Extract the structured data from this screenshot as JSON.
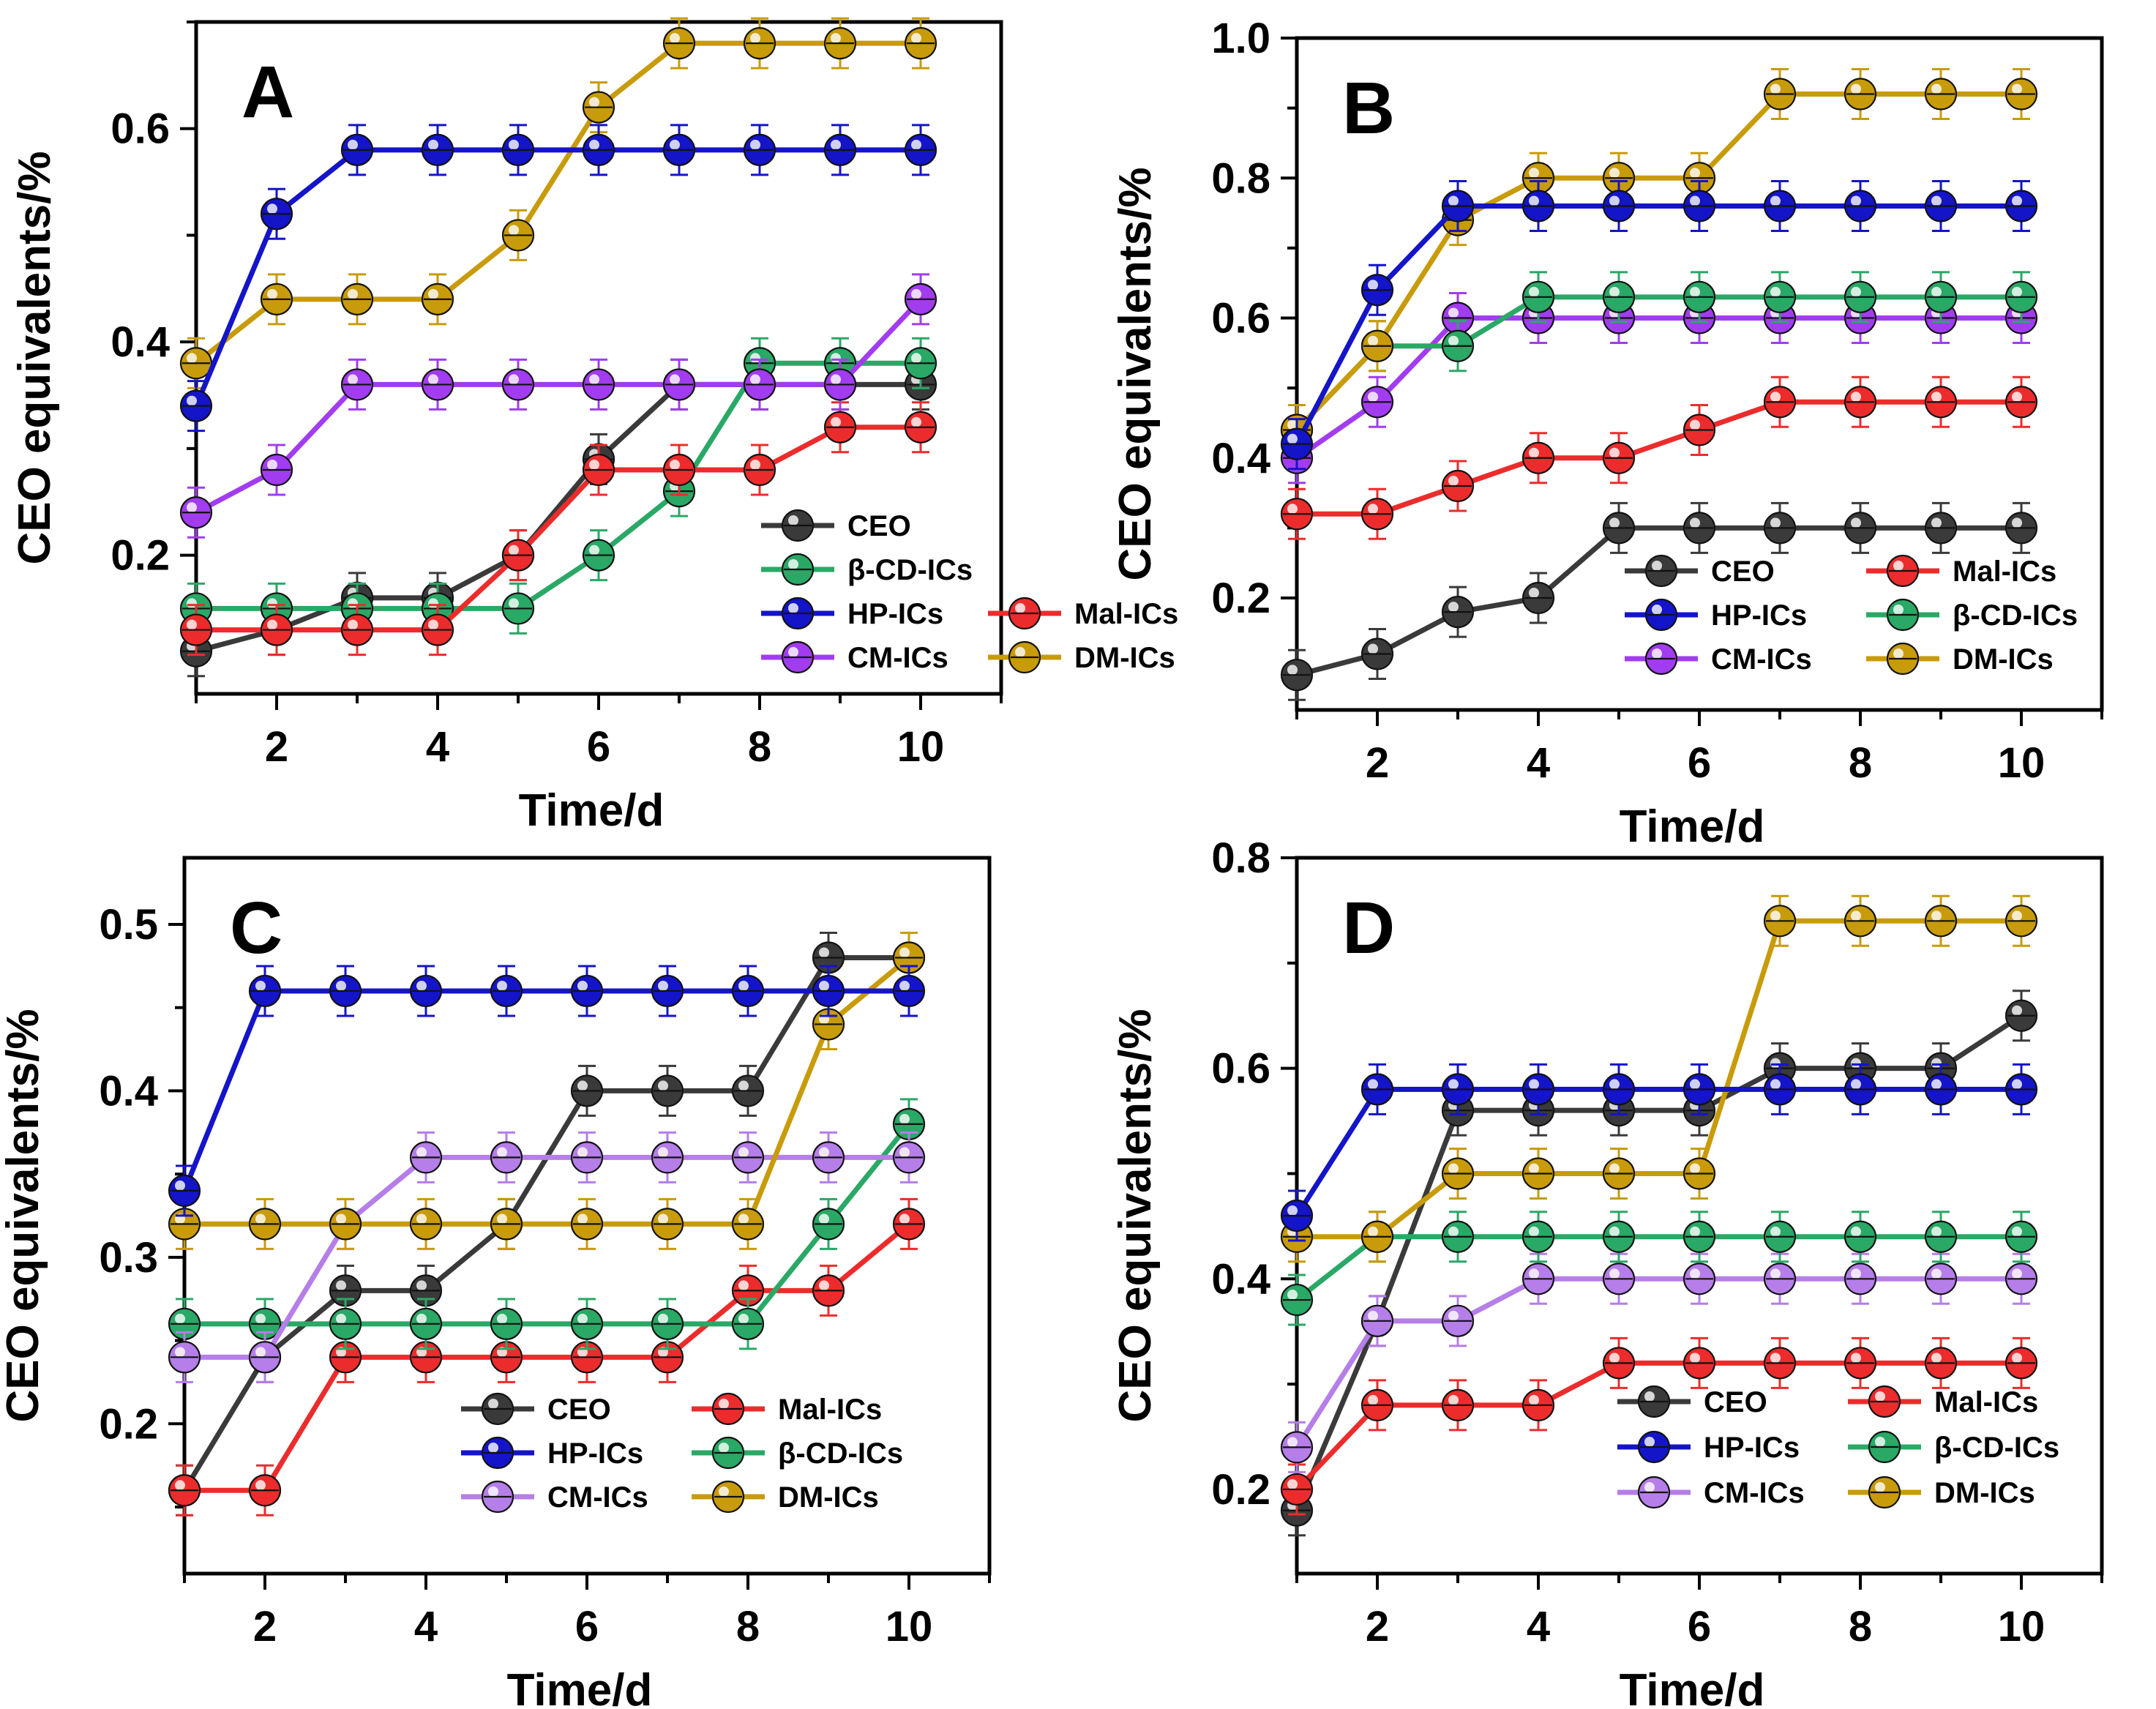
{
  "colors": {
    "CEO": "#3a3a3a",
    "Mal-ICs": "#ec2c2c",
    "HP-ICs": "#1414c8",
    "β-CD-ICs": "#2aa866",
    "DM-ICs": "#c89b0a"
  },
  "chart_data": [
    {
      "type": "line",
      "panel": "A",
      "xlabel": "Time/d",
      "ylabel": "CEO equivalents/%",
      "xlim": [
        1,
        11
      ],
      "ylim": [
        0.07,
        0.7
      ],
      "xticks": [
        2,
        4,
        6,
        8,
        10
      ],
      "yticks": [
        0.2,
        0.4,
        0.6
      ],
      "ytick_labels": [
        "0.2",
        "0.4",
        "0.6"
      ],
      "legend_position": "lower-right",
      "legend_layout": [
        [
          "CEO"
        ],
        [
          "β-CD-ICs"
        ],
        [
          "HP-ICs",
          "Mal-ICs"
        ],
        [
          "CM-ICs",
          "DM-ICs"
        ]
      ],
      "series": [
        {
          "name": "CEO",
          "color": "#3a3a3a",
          "x": [
            1,
            2,
            3,
            4,
            5,
            6,
            7,
            8,
            9,
            10
          ],
          "values": [
            0.11,
            0.13,
            0.16,
            0.16,
            0.2,
            0.29,
            0.36,
            0.36,
            0.36,
            0.36
          ]
        },
        {
          "name": "β-CD-ICs",
          "color": "#2aa866",
          "x": [
            1,
            2,
            3,
            4,
            5,
            6,
            7,
            8,
            9,
            10
          ],
          "values": [
            0.15,
            0.15,
            0.15,
            0.15,
            0.15,
            0.2,
            0.26,
            0.38,
            0.38,
            0.38
          ]
        },
        {
          "name": "Mal-ICs",
          "color": "#ec2c2c",
          "x": [
            1,
            2,
            3,
            4,
            5,
            6,
            7,
            8,
            9,
            10
          ],
          "values": [
            0.13,
            0.13,
            0.13,
            0.13,
            0.2,
            0.28,
            0.28,
            0.28,
            0.32,
            0.32
          ]
        },
        {
          "name": "CM-ICs",
          "color": "#a23cf0",
          "x": [
            1,
            2,
            3,
            4,
            5,
            6,
            7,
            8,
            9,
            10
          ],
          "values": [
            0.24,
            0.28,
            0.36,
            0.36,
            0.36,
            0.36,
            0.36,
            0.36,
            0.36,
            0.44
          ]
        },
        {
          "name": "DM-ICs",
          "color": "#c89b0a",
          "x": [
            1,
            2,
            3,
            4,
            5,
            6,
            7,
            8,
            9,
            10
          ],
          "values": [
            0.38,
            0.44,
            0.44,
            0.44,
            0.5,
            0.62,
            0.68,
            0.68,
            0.68,
            0.68
          ]
        },
        {
          "name": "HP-ICs",
          "color": "#1414c8",
          "x": [
            1,
            2,
            3,
            4,
            5,
            6,
            7,
            8,
            9,
            10
          ],
          "values": [
            0.34,
            0.52,
            0.58,
            0.58,
            0.58,
            0.58,
            0.58,
            0.58,
            0.58,
            0.58
          ]
        }
      ]
    },
    {
      "type": "line",
      "panel": "B",
      "xlabel": "Time/d",
      "ylabel": "CEO equivalents/%",
      "xlim": [
        1,
        11
      ],
      "ylim": [
        0.04,
        1.0
      ],
      "xticks": [
        2,
        4,
        6,
        8,
        10
      ],
      "yticks": [
        0.2,
        0.4,
        0.6,
        0.8,
        1.0
      ],
      "ytick_labels": [
        "0.2",
        "0.4",
        "0.6",
        "0.8",
        "1.0"
      ],
      "legend_position": "bottom-right",
      "legend_layout": [
        [
          "CEO",
          "Mal-ICs"
        ],
        [
          "HP-ICs",
          "β-CD-ICs"
        ],
        [
          "CM-ICs",
          "DM-ICs"
        ]
      ],
      "series": [
        {
          "name": "CEO",
          "color": "#3a3a3a",
          "x": [
            1,
            2,
            3,
            4,
            5,
            6,
            7,
            8,
            9,
            10
          ],
          "values": [
            0.09,
            0.12,
            0.18,
            0.2,
            0.3,
            0.3,
            0.3,
            0.3,
            0.3,
            0.3
          ]
        },
        {
          "name": "Mal-ICs",
          "color": "#ec2c2c",
          "x": [
            1,
            2,
            3,
            4,
            5,
            6,
            7,
            8,
            9,
            10
          ],
          "values": [
            0.32,
            0.32,
            0.36,
            0.4,
            0.4,
            0.44,
            0.48,
            0.48,
            0.48,
            0.48
          ]
        },
        {
          "name": "CM-ICs",
          "color": "#a23cf0",
          "x": [
            1,
            2,
            3,
            4,
            5,
            6,
            7,
            8,
            9,
            10
          ],
          "values": [
            0.4,
            0.48,
            0.6,
            0.6,
            0.6,
            0.6,
            0.6,
            0.6,
            0.6,
            0.6
          ]
        },
        {
          "name": "β-CD-ICs",
          "color": "#2aa866",
          "x": [
            1,
            2,
            3,
            4,
            5,
            6,
            7,
            8,
            9,
            10
          ],
          "values": [
            0.44,
            0.56,
            0.56,
            0.63,
            0.63,
            0.63,
            0.63,
            0.63,
            0.63,
            0.63
          ]
        },
        {
          "name": "DM-ICs",
          "color": "#c89b0a",
          "x": [
            1,
            2,
            3,
            4,
            5,
            6,
            7,
            8,
            9,
            10
          ],
          "values": [
            0.44,
            0.56,
            0.74,
            0.8,
            0.8,
            0.8,
            0.92,
            0.92,
            0.92,
            0.92
          ]
        },
        {
          "name": "HP-ICs",
          "color": "#1414c8",
          "x": [
            1,
            2,
            3,
            4,
            5,
            6,
            7,
            8,
            9,
            10
          ],
          "values": [
            0.42,
            0.64,
            0.76,
            0.76,
            0.76,
            0.76,
            0.76,
            0.76,
            0.76,
            0.76
          ]
        }
      ]
    },
    {
      "type": "line",
      "panel": "C",
      "xlabel": "Time/d",
      "ylabel": "CEO equivalents/%",
      "xlim": [
        1,
        11
      ],
      "ylim": [
        0.11,
        0.54
      ],
      "xticks": [
        2,
        4,
        6,
        8,
        10
      ],
      "yticks": [
        0.2,
        0.3,
        0.4,
        0.5
      ],
      "ytick_labels": [
        "0.2",
        "0.3",
        "0.4",
        "0.5"
      ],
      "legend_position": "bottom-right",
      "legend_layout": [
        [
          "CEO",
          "Mal-ICs"
        ],
        [
          "HP-ICs",
          "β-CD-ICs"
        ],
        [
          "CM-ICs",
          "DM-ICs"
        ]
      ],
      "series": [
        {
          "name": "CEO",
          "color": "#3a3a3a",
          "x": [
            1,
            2,
            3,
            4,
            5,
            6,
            7,
            8,
            9,
            10
          ],
          "values": [
            0.16,
            0.24,
            0.28,
            0.28,
            0.32,
            0.4,
            0.4,
            0.4,
            0.48,
            0.48
          ]
        },
        {
          "name": "Mal-ICs",
          "color": "#ec2c2c",
          "x": [
            1,
            2,
            3,
            4,
            5,
            6,
            7,
            8,
            9,
            10
          ],
          "values": [
            0.16,
            0.16,
            0.24,
            0.24,
            0.24,
            0.24,
            0.24,
            0.28,
            0.28,
            0.32
          ]
        },
        {
          "name": "β-CD-ICs",
          "color": "#2aa866",
          "x": [
            1,
            2,
            3,
            4,
            5,
            6,
            7,
            8,
            9,
            10
          ],
          "values": [
            0.26,
            0.26,
            0.26,
            0.26,
            0.26,
            0.26,
            0.26,
            0.26,
            0.32,
            0.38
          ]
        },
        {
          "name": "CM-ICs",
          "color": "#b57ee8",
          "x": [
            1,
            2,
            3,
            4,
            5,
            6,
            7,
            8,
            9,
            10
          ],
          "values": [
            0.24,
            0.24,
            0.32,
            0.36,
            0.36,
            0.36,
            0.36,
            0.36,
            0.36,
            0.36
          ]
        },
        {
          "name": "DM-ICs",
          "color": "#c89b0a",
          "x": [
            1,
            2,
            3,
            4,
            5,
            6,
            7,
            8,
            9,
            10
          ],
          "values": [
            0.32,
            0.32,
            0.32,
            0.32,
            0.32,
            0.32,
            0.32,
            0.32,
            0.44,
            0.48
          ]
        },
        {
          "name": "HP-ICs",
          "color": "#1414c8",
          "x": [
            1,
            2,
            3,
            4,
            5,
            6,
            7,
            8,
            9,
            10
          ],
          "values": [
            0.34,
            0.46,
            0.46,
            0.46,
            0.46,
            0.46,
            0.46,
            0.46,
            0.46,
            0.46
          ]
        }
      ]
    },
    {
      "type": "line",
      "panel": "D",
      "xlabel": "Time/d",
      "ylabel": "CEO equivalents/%",
      "xlim": [
        1,
        11
      ],
      "ylim": [
        0.12,
        0.8
      ],
      "xticks": [
        2,
        4,
        6,
        8,
        10
      ],
      "yticks": [
        0.2,
        0.4,
        0.6,
        0.8
      ],
      "ytick_labels": [
        "0.2",
        "0.4",
        "0.6",
        "0.8"
      ],
      "legend_position": "bottom-right",
      "legend_layout": [
        [
          "CEO",
          "Mal-ICs"
        ],
        [
          "HP-ICs",
          "β-CD-ICs"
        ],
        [
          "CM-ICs",
          "DM-ICs"
        ]
      ],
      "series": [
        {
          "name": "CEO",
          "color": "#3a3a3a",
          "x": [
            1,
            2,
            3,
            4,
            5,
            6,
            7,
            8,
            9,
            10
          ],
          "values": [
            0.18,
            0.36,
            0.56,
            0.56,
            0.56,
            0.56,
            0.6,
            0.6,
            0.6,
            0.65
          ]
        },
        {
          "name": "Mal-ICs",
          "color": "#ec2c2c",
          "x": [
            1,
            2,
            3,
            4,
            5,
            6,
            7,
            8,
            9,
            10
          ],
          "values": [
            0.2,
            0.28,
            0.28,
            0.28,
            0.32,
            0.32,
            0.32,
            0.32,
            0.32,
            0.32
          ]
        },
        {
          "name": "CM-ICs",
          "color": "#b57ee8",
          "x": [
            1,
            2,
            3,
            4,
            5,
            6,
            7,
            8,
            9,
            10
          ],
          "values": [
            0.24,
            0.36,
            0.36,
            0.4,
            0.4,
            0.4,
            0.4,
            0.4,
            0.4,
            0.4
          ]
        },
        {
          "name": "β-CD-ICs",
          "color": "#2aa866",
          "x": [
            1,
            2,
            3,
            4,
            5,
            6,
            7,
            8,
            9,
            10
          ],
          "values": [
            0.38,
            0.44,
            0.44,
            0.44,
            0.44,
            0.44,
            0.44,
            0.44,
            0.44,
            0.44
          ]
        },
        {
          "name": "DM-ICs",
          "color": "#c89b0a",
          "x": [
            1,
            2,
            3,
            4,
            5,
            6,
            7,
            8,
            9,
            10
          ],
          "values": [
            0.44,
            0.44,
            0.5,
            0.5,
            0.5,
            0.5,
            0.74,
            0.74,
            0.74,
            0.74
          ]
        },
        {
          "name": "HP-ICs",
          "color": "#1414c8",
          "x": [
            1,
            2,
            3,
            4,
            5,
            6,
            7,
            8,
            9,
            10
          ],
          "values": [
            0.46,
            0.58,
            0.58,
            0.58,
            0.58,
            0.58,
            0.58,
            0.58,
            0.58,
            0.58
          ]
        }
      ]
    }
  ]
}
